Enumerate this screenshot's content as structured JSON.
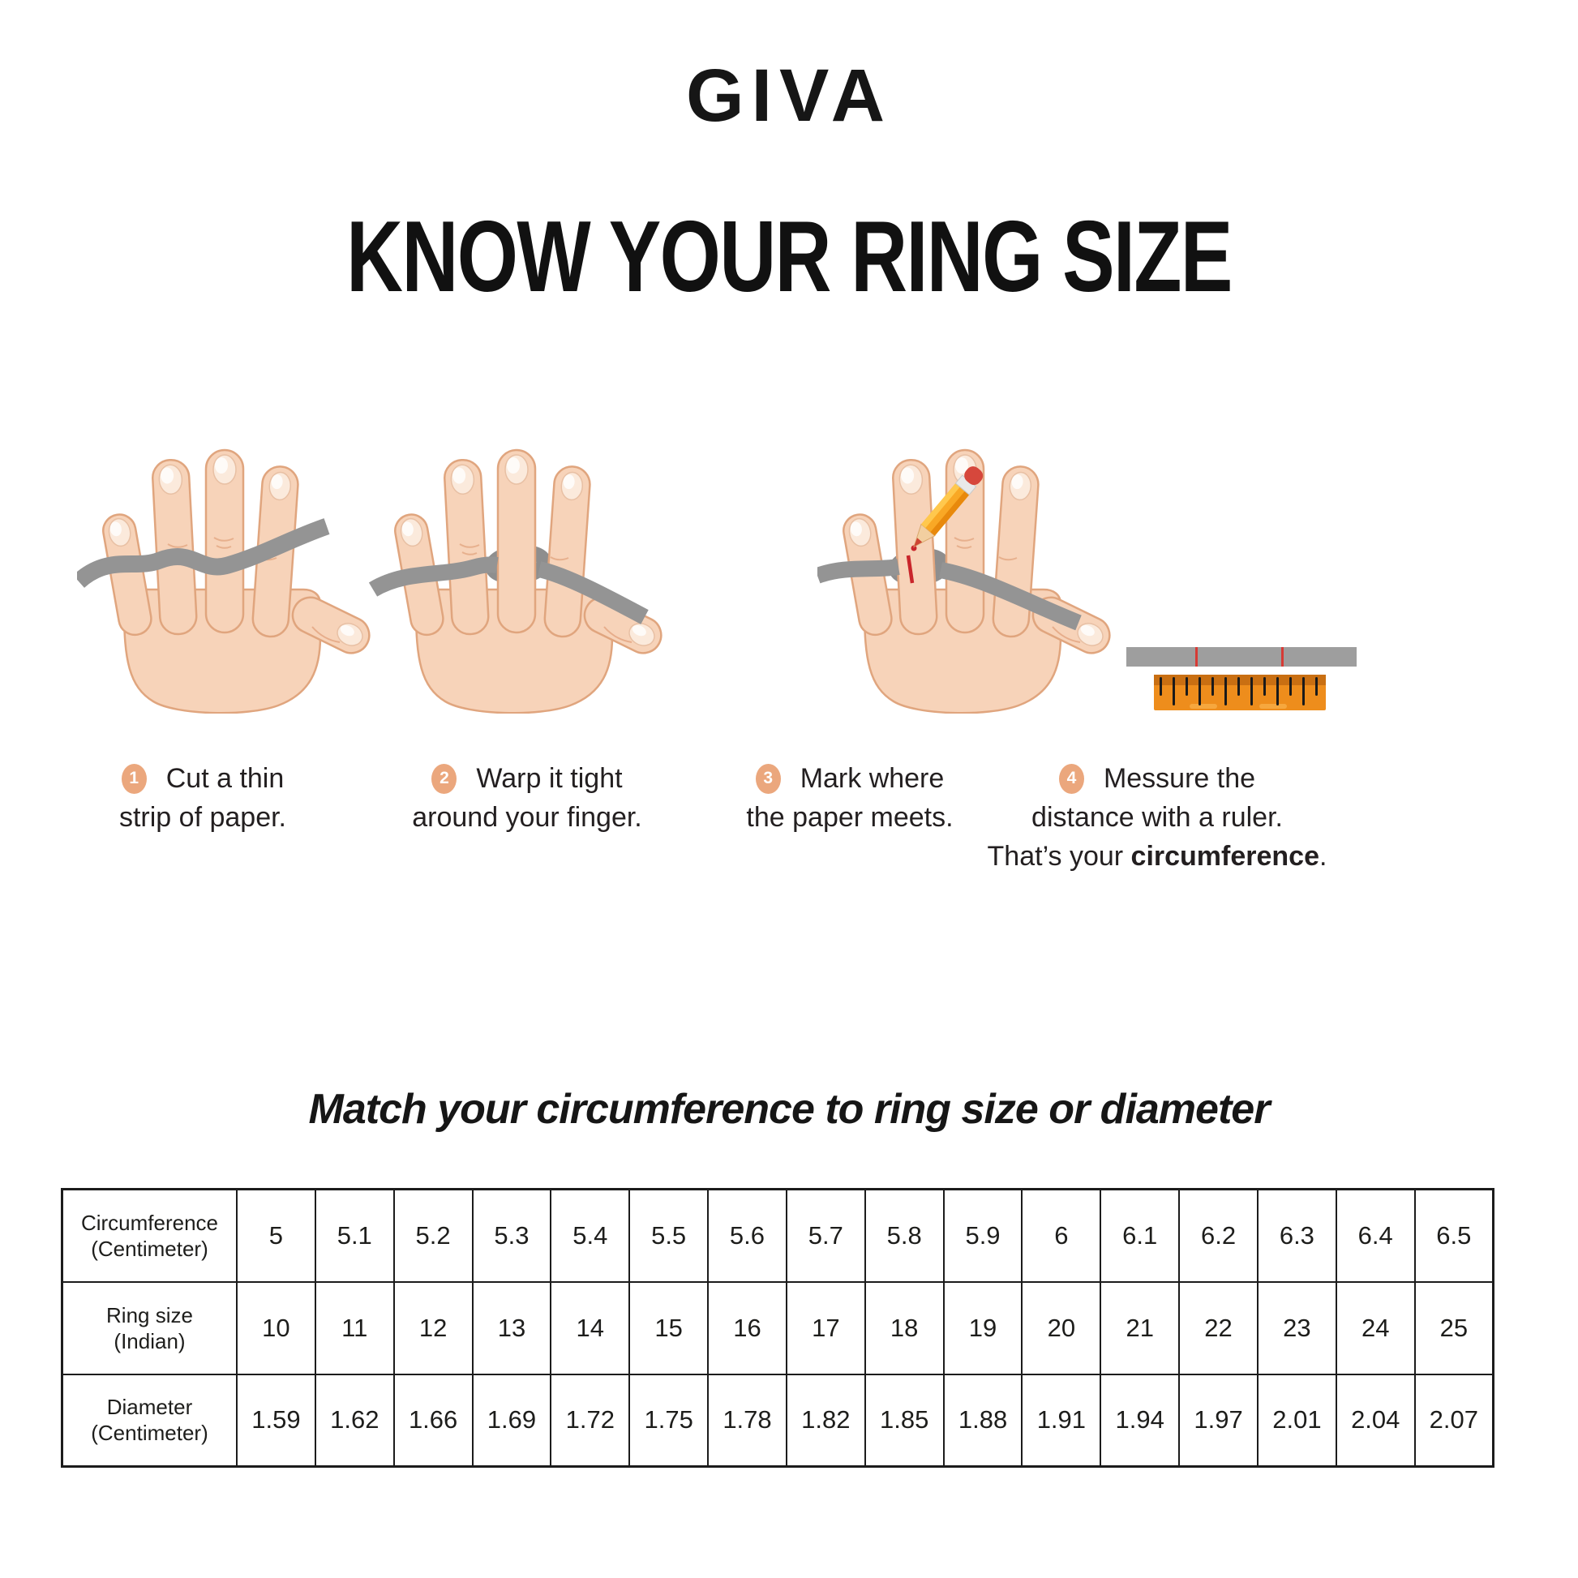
{
  "brand": {
    "logo_text": "GIVA"
  },
  "header": {
    "title": "KNOW YOUR RING SIZE"
  },
  "steps": [
    {
      "number": "1",
      "line1": "Cut a thin",
      "line2": "strip of paper.",
      "illustration": "hand-with-paper-strip"
    },
    {
      "number": "2",
      "line1": "Warp it tight",
      "line2": "around your finger.",
      "illustration": "hand-strip-wrapped-around-finger"
    },
    {
      "number": "3",
      "line1": "Mark where",
      "line2": "the paper meets.",
      "illustration": "hand-pencil-marking-strip"
    },
    {
      "number": "4",
      "line1": "Messure the",
      "line2": "distance with a ruler.",
      "line3_pre": "That’s your ",
      "line3_bold": "circumference",
      "line3_post": ".",
      "illustration": "paper-strip-and-ruler"
    }
  ],
  "table_section": {
    "subtitle": "Match your circumference to ring size or diameter"
  },
  "size_table": {
    "rows": [
      {
        "label_lines": [
          "Circumference",
          "(Centimeter)"
        ],
        "values": [
          "5",
          "5.1",
          "5.2",
          "5.3",
          "5.4",
          "5.5",
          "5.6",
          "5.7",
          "5.8",
          "5.9",
          "6",
          "6.1",
          "6.2",
          "6.3",
          "6.4",
          "6.5"
        ]
      },
      {
        "label_lines": [
          "Ring size",
          "(Indian)"
        ],
        "values": [
          "10",
          "11",
          "12",
          "13",
          "14",
          "15",
          "16",
          "17",
          "18",
          "19",
          "20",
          "21",
          "22",
          "23",
          "24",
          "25"
        ]
      },
      {
        "label_lines": [
          "Diameter",
          "(Centimeter)"
        ],
        "values": [
          "1.59",
          "1.62",
          "1.66",
          "1.69",
          "1.72",
          "1.75",
          "1.78",
          "1.82",
          "1.85",
          "1.88",
          "1.91",
          "1.94",
          "1.97",
          "2.01",
          "2.04",
          "2.07"
        ]
      }
    ]
  },
  "colors": {
    "step_badge_salmon": "#EBA77D",
    "paper_strip_gray": "#949494",
    "ruler_orange": "#EE8D1C",
    "ruler_band_dark": "#C96F12",
    "mark_red": "#D0342C",
    "skin": "#F7D3B9",
    "skin_outline": "#E0A57E",
    "text": "#231F20"
  }
}
